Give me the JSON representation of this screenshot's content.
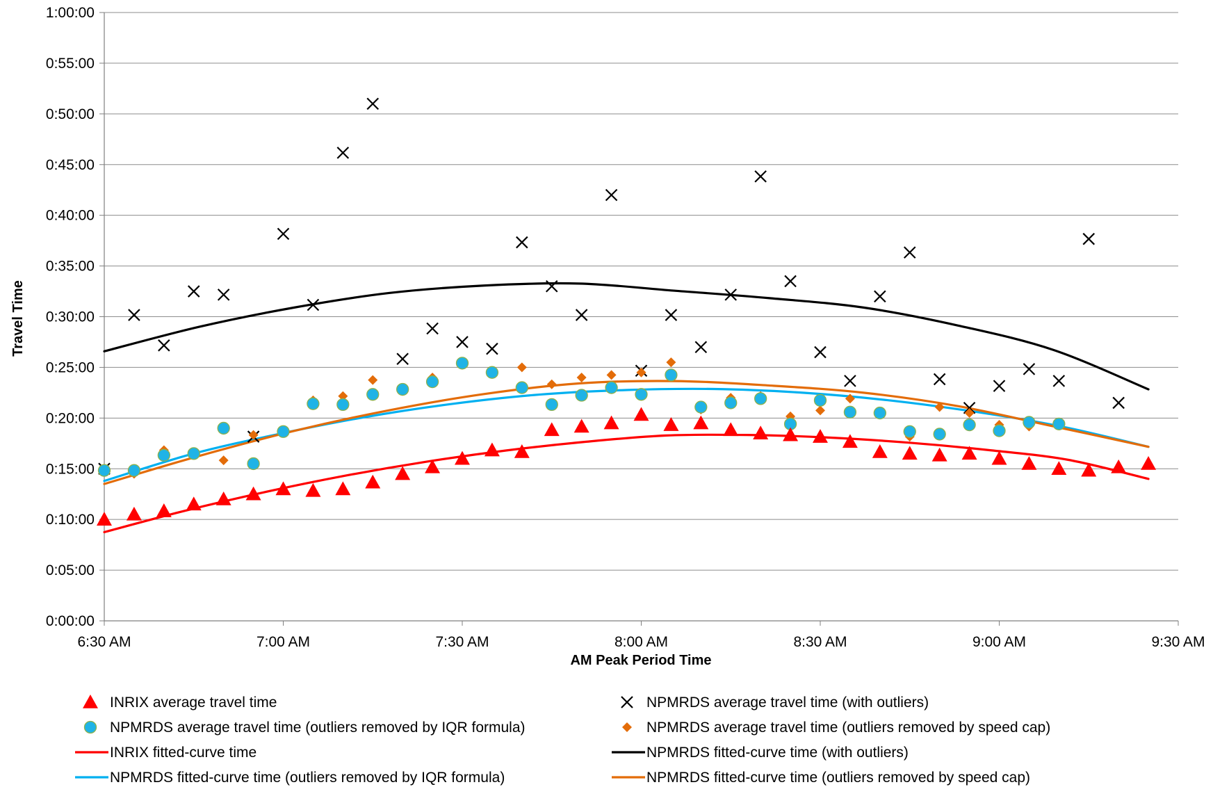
{
  "chart_data": {
    "type": "scatter",
    "xlabel": "AM Peak Period Time",
    "ylabel": "Travel Time",
    "x_ticks": [
      "6:30 AM",
      "7:00 AM",
      "7:30 AM",
      "8:00 AM",
      "8:30 AM",
      "9:00 AM",
      "9:30 AM"
    ],
    "y_ticks": [
      "0:00:00",
      "0:05:00",
      "0:10:00",
      "0:15:00",
      "0:20:00",
      "0:25:00",
      "0:30:00",
      "0:35:00",
      "0:40:00",
      "0:45:00",
      "0:50:00",
      "0:55:00",
      "1:00:00"
    ],
    "x_range_minutes": [
      0,
      180
    ],
    "y_range_seconds": [
      0,
      3600
    ],
    "x_unit": "minutes after 6:30 AM",
    "y_unit": "seconds",
    "grid": "horizontal",
    "legend_position": "bottom",
    "x": [
      0,
      5,
      10,
      15,
      20,
      25,
      30,
      35,
      40,
      45,
      50,
      55,
      60,
      65,
      70,
      75,
      80,
      85,
      90,
      95,
      100,
      105,
      110,
      115,
      120,
      125,
      130,
      135,
      140,
      145,
      150,
      155,
      160,
      165,
      170,
      175
    ],
    "series": [
      {
        "name": "INRIX average travel time",
        "marker": "triangle",
        "color": "#ff0000",
        "values": [
          600,
          630,
          650,
          690,
          720,
          750,
          780,
          770,
          780,
          820,
          870,
          910,
          960,
          1010,
          1000,
          1130,
          1150,
          1170,
          1220,
          1160,
          1170,
          1130,
          1110,
          1100,
          1090,
          1060,
          1000,
          990,
          980,
          990,
          960,
          930,
          900,
          890,
          910,
          930
        ]
      },
      {
        "name": "NPMRDS average travel time (with outliers)",
        "marker": "x",
        "color": "#000000",
        "values": [
          900,
          1810,
          1630,
          1950,
          1930,
          1090,
          2290,
          1870,
          2770,
          3060,
          1550,
          1730,
          1650,
          1610,
          2240,
          1980,
          1810,
          2520,
          1480,
          1810,
          1620,
          1930,
          2630,
          2010,
          1590,
          1420,
          1920,
          2180,
          1430,
          1260,
          1390,
          1490,
          1420,
          2260,
          1290
        ]
      },
      {
        "name": "NPMRDS average travel time (outliers removed by IQR formula)",
        "marker": "circle",
        "color": "#1fb3e6",
        "values": [
          890,
          890,
          980,
          990,
          1140,
          930,
          1120,
          1285,
          1280,
          1340,
          1370,
          1415,
          1525,
          1470,
          1380,
          1280,
          1335,
          1380,
          1340,
          1455,
          1265,
          1290,
          1315,
          1165,
          1305,
          1235,
          1230,
          1120,
          1105,
          1160,
          1125,
          1175,
          1165
        ]
      },
      {
        "name": "NPMRDS average travel time (outliers removed by speed cap)",
        "marker": "diamond",
        "color": "#e36c09",
        "values": [
          890,
          870,
          1010,
          990,
          950,
          1100,
          1120,
          1305,
          1330,
          1425,
          1360,
          1440,
          1515,
          1470,
          1500,
          1400,
          1440,
          1455,
          1470,
          1530,
          1250,
          1320,
          1330,
          1210,
          1245,
          1315,
          1230,
          1090,
          1265,
          1230,
          1160,
          1150
        ]
      },
      {
        "name": "INRIX fitted-curve time",
        "marker": "line",
        "color": "#ff0000",
        "values": [
          525,
          651,
          762,
          859,
          941,
          1008,
          1060,
          1097,
          1100,
          1085,
          1055,
          1011,
          953,
          840
        ]
      },
      {
        "name": "NPMRDS fitted-curve time (with outliers)",
        "marker": "line",
        "color": "#000000",
        "values": [
          1595,
          1740,
          1854,
          1940,
          1984,
          1996,
          1954,
          1910,
          1854,
          1747,
          1603,
          1370
        ]
      },
      {
        "name": "NPMRDS fitted-curve time (outliers removed by IQR formula)",
        "marker": "line",
        "color": "#00b0f0",
        "values": [
          828,
          986,
          1105,
          1206,
          1284,
          1339,
          1366,
          1372,
          1351,
          1306,
          1238,
          1150,
          1030
        ]
      },
      {
        "name": "NPMRDS fitted-curve time (outliers removed by speed cap)",
        "marker": "line",
        "color": "#e36c09",
        "values": [
          810,
          976,
          1124,
          1246,
          1342,
          1405,
          1419,
          1393,
          1350,
          1270,
          1151,
          1030
        ]
      }
    ]
  },
  "legend": [
    "INRIX average travel time",
    "NPMRDS average travel time (with outliers)",
    "NPMRDS average travel time (outliers removed by IQR formula)",
    "NPMRDS average travel time (outliers removed by speed cap)",
    "INRIX fitted-curve time",
    "NPMRDS fitted-curve time (with outliers)",
    "NPMRDS fitted-curve time (outliers removed by IQR formula)",
    "NPMRDS fitted-curve time (outliers removed by speed cap)"
  ]
}
